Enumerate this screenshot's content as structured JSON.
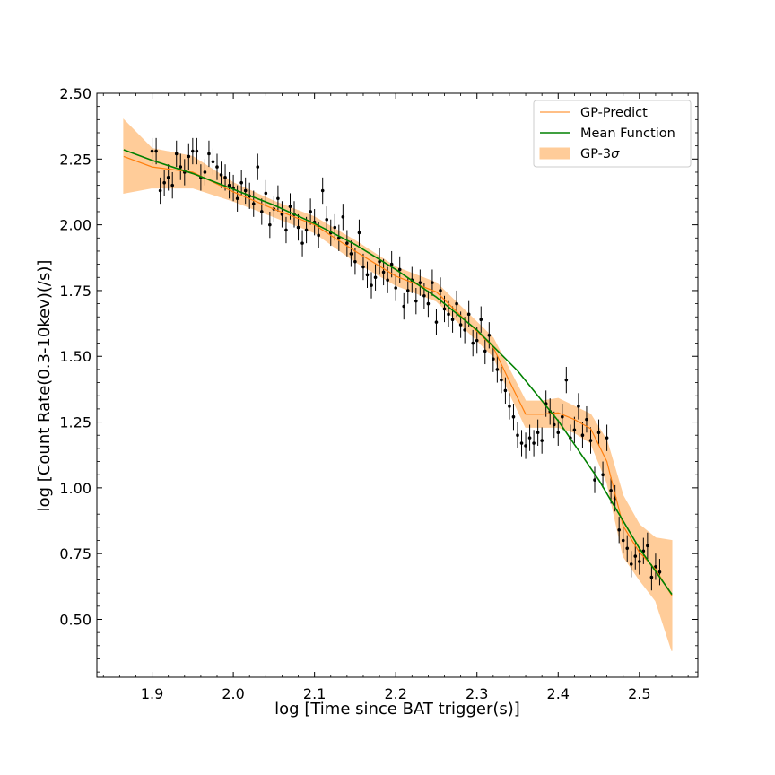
{
  "chart_data": {
    "type": "scatter",
    "title": "",
    "xlabel": "log [Time since BAT trigger(s)]",
    "ylabel": "log [Count Rate(0.3-10kev)(/s)]",
    "xlim": [
      1.832,
      2.572
    ],
    "ylim": [
      0.28,
      2.5
    ],
    "xticks": [
      1.9,
      2.0,
      2.1,
      2.2,
      2.3,
      2.4,
      2.5
    ],
    "xtick_labels": [
      "1.9",
      "2.0",
      "2.1",
      "2.2",
      "2.3",
      "2.4",
      "2.5"
    ],
    "yticks": [
      0.5,
      0.75,
      1.0,
      1.25,
      1.5,
      1.75,
      2.0,
      2.25,
      2.5
    ],
    "ytick_labels": [
      "0.50",
      "0.75",
      "1.00",
      "1.25",
      "1.50",
      "1.75",
      "2.00",
      "2.25",
      "2.50"
    ],
    "legend": {
      "placement": "top-right",
      "entries": [
        {
          "label": "GP-Predict",
          "kind": "line",
          "color": "#ff7f0e"
        },
        {
          "label": "Mean Function",
          "kind": "line",
          "color": "#008000"
        },
        {
          "label": "GP-3",
          "suffix": "σ",
          "kind": "band",
          "color": "#ffcc99"
        }
      ]
    },
    "colors": {
      "gp_predict": "#ff7f0e",
      "mean_function": "#008000",
      "band": "#ffcc99",
      "points": "#000000"
    },
    "series": [
      {
        "name": "GP-3σ",
        "kind": "band",
        "x": [
          1.865,
          1.9,
          1.95,
          2.0,
          2.05,
          2.1,
          2.15,
          2.2,
          2.25,
          2.3,
          2.32,
          2.34,
          2.36,
          2.38,
          2.4,
          2.42,
          2.44,
          2.46,
          2.48,
          2.5,
          2.52,
          2.54
        ],
        "upper": [
          2.4,
          2.29,
          2.26,
          2.16,
          2.09,
          2.03,
          1.94,
          1.84,
          1.78,
          1.63,
          1.57,
          1.45,
          1.33,
          1.33,
          1.34,
          1.31,
          1.28,
          1.18,
          0.97,
          0.86,
          0.81,
          0.8
        ],
        "lower": [
          2.12,
          2.14,
          2.14,
          2.09,
          2.03,
          1.97,
          1.86,
          1.77,
          1.71,
          1.56,
          1.5,
          1.36,
          1.23,
          1.23,
          1.23,
          1.21,
          1.17,
          1.02,
          0.74,
          0.65,
          0.57,
          0.38
        ]
      },
      {
        "name": "GP-Predict",
        "kind": "line",
        "x": [
          1.865,
          1.9,
          1.95,
          2.0,
          2.05,
          2.1,
          2.15,
          2.2,
          2.25,
          2.3,
          2.32,
          2.34,
          2.36,
          2.38,
          2.4,
          2.42,
          2.44,
          2.46,
          2.48,
          2.5,
          2.52,
          2.54
        ],
        "y": [
          2.26,
          2.22,
          2.2,
          2.125,
          2.06,
          2.0,
          1.9,
          1.805,
          1.745,
          1.595,
          1.535,
          1.405,
          1.28,
          1.28,
          1.285,
          1.26,
          1.225,
          1.1,
          0.855,
          0.755,
          0.69,
          0.59
        ]
      },
      {
        "name": "Mean Function",
        "kind": "line",
        "x": [
          1.865,
          1.9,
          1.95,
          2.0,
          2.05,
          2.1,
          2.15,
          2.2,
          2.25,
          2.3,
          2.35,
          2.4,
          2.45,
          2.5,
          2.54
        ],
        "y": [
          2.285,
          2.245,
          2.195,
          2.135,
          2.075,
          2.005,
          1.925,
          1.83,
          1.725,
          1.6,
          1.445,
          1.255,
          1.03,
          0.77,
          0.595
        ]
      },
      {
        "name": "data",
        "kind": "points",
        "x": [
          1.9,
          1.905,
          1.91,
          1.915,
          1.92,
          1.925,
          1.93,
          1.935,
          1.94,
          1.945,
          1.95,
          1.955,
          1.96,
          1.965,
          1.97,
          1.975,
          1.98,
          1.985,
          1.99,
          1.995,
          2.0,
          2.005,
          2.01,
          2.015,
          2.02,
          2.025,
          2.03,
          2.035,
          2.04,
          2.045,
          2.05,
          2.055,
          2.06,
          2.065,
          2.07,
          2.075,
          2.08,
          2.085,
          2.09,
          2.095,
          2.1,
          2.105,
          2.11,
          2.115,
          2.12,
          2.125,
          2.13,
          2.135,
          2.14,
          2.145,
          2.15,
          2.155,
          2.16,
          2.165,
          2.17,
          2.175,
          2.18,
          2.185,
          2.19,
          2.195,
          2.2,
          2.205,
          2.21,
          2.215,
          2.22,
          2.225,
          2.23,
          2.235,
          2.24,
          2.245,
          2.25,
          2.255,
          2.26,
          2.265,
          2.27,
          2.275,
          2.28,
          2.285,
          2.29,
          2.295,
          2.3,
          2.305,
          2.31,
          2.315,
          2.32,
          2.325,
          2.33,
          2.335,
          2.34,
          2.345,
          2.35,
          2.355,
          2.36,
          2.365,
          2.37,
          2.375,
          2.38,
          2.385,
          2.39,
          2.395,
          2.4,
          2.405,
          2.41,
          2.415,
          2.42,
          2.425,
          2.43,
          2.435,
          2.44,
          2.445,
          2.45,
          2.455,
          2.46,
          2.465,
          2.47,
          2.475,
          2.48,
          2.485,
          2.49,
          2.495,
          2.5,
          2.505,
          2.51,
          2.515,
          2.52,
          2.525
        ],
        "y": [
          2.28,
          2.28,
          2.13,
          2.16,
          2.18,
          2.15,
          2.27,
          2.22,
          2.2,
          2.26,
          2.28,
          2.28,
          2.18,
          2.2,
          2.27,
          2.24,
          2.22,
          2.19,
          2.18,
          2.15,
          2.14,
          2.1,
          2.16,
          2.13,
          2.11,
          2.08,
          2.22,
          2.05,
          2.12,
          2.0,
          2.06,
          2.1,
          2.04,
          1.98,
          2.07,
          2.04,
          1.99,
          1.93,
          1.98,
          2.05,
          2.01,
          1.96,
          2.13,
          2.02,
          1.97,
          1.99,
          1.95,
          2.03,
          1.93,
          1.89,
          1.86,
          1.97,
          1.84,
          1.81,
          1.77,
          1.8,
          1.86,
          1.82,
          1.79,
          1.85,
          1.76,
          1.83,
          1.69,
          1.75,
          1.79,
          1.71,
          1.78,
          1.73,
          1.7,
          1.78,
          1.63,
          1.75,
          1.68,
          1.66,
          1.64,
          1.7,
          1.62,
          1.6,
          1.66,
          1.55,
          1.56,
          1.64,
          1.52,
          1.58,
          1.49,
          1.45,
          1.41,
          1.37,
          1.31,
          1.27,
          1.2,
          1.17,
          1.16,
          1.19,
          1.17,
          1.21,
          1.18,
          1.32,
          1.29,
          1.24,
          1.21,
          1.27,
          1.41,
          1.19,
          1.22,
          1.31,
          1.2,
          1.26,
          1.18,
          1.03,
          1.21,
          1.05,
          1.19,
          0.99,
          0.96,
          0.84,
          0.8,
          0.77,
          0.71,
          0.74,
          0.72,
          0.76,
          0.78,
          0.66,
          0.7,
          0.68
        ],
        "err": [
          0.05,
          0.05,
          0.05,
          0.05,
          0.05,
          0.05,
          0.05,
          0.05,
          0.05,
          0.05,
          0.05,
          0.05,
          0.05,
          0.05,
          0.05,
          0.05,
          0.05,
          0.05,
          0.05,
          0.05,
          0.05,
          0.05,
          0.05,
          0.05,
          0.05,
          0.05,
          0.05,
          0.05,
          0.05,
          0.05,
          0.05,
          0.05,
          0.05,
          0.05,
          0.05,
          0.05,
          0.05,
          0.05,
          0.05,
          0.05,
          0.05,
          0.05,
          0.05,
          0.05,
          0.05,
          0.05,
          0.05,
          0.05,
          0.05,
          0.05,
          0.05,
          0.05,
          0.05,
          0.05,
          0.05,
          0.05,
          0.05,
          0.05,
          0.05,
          0.05,
          0.05,
          0.05,
          0.05,
          0.05,
          0.05,
          0.05,
          0.05,
          0.05,
          0.05,
          0.05,
          0.05,
          0.05,
          0.05,
          0.05,
          0.05,
          0.05,
          0.05,
          0.05,
          0.05,
          0.05,
          0.05,
          0.05,
          0.05,
          0.05,
          0.05,
          0.05,
          0.05,
          0.05,
          0.05,
          0.05,
          0.05,
          0.05,
          0.05,
          0.05,
          0.05,
          0.05,
          0.05,
          0.05,
          0.05,
          0.05,
          0.05,
          0.05,
          0.05,
          0.05,
          0.05,
          0.05,
          0.05,
          0.05,
          0.05,
          0.05,
          0.05,
          0.05,
          0.05,
          0.05,
          0.05,
          0.05,
          0.05,
          0.05,
          0.05,
          0.05,
          0.05,
          0.05,
          0.05,
          0.05,
          0.05,
          0.05
        ]
      }
    ]
  }
}
